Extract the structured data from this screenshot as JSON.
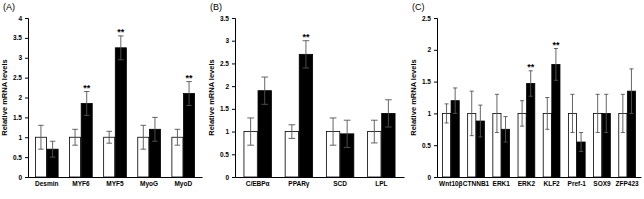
{
  "chart_data": [
    {
      "type": "bar",
      "title": "(A)",
      "y_label": "Relative mRNA levels",
      "categories": [
        "Desmin",
        "MYF6",
        "MYF5",
        "MyoG",
        "MyoD"
      ],
      "series": [
        {
          "color": "#ffffff",
          "values": [
            1,
            1,
            1,
            1,
            1
          ],
          "errors": [
            0.3,
            0.2,
            0.15,
            0.3,
            0.2
          ]
        },
        {
          "color": "#000000",
          "values": [
            0.7,
            1.85,
            3.25,
            1.2,
            2.1
          ],
          "errors": [
            0.2,
            0.3,
            0.3,
            0.3,
            0.3
          ]
        }
      ],
      "ylim": [
        0,
        4
      ],
      "yticks": [
        0,
        0.5,
        1,
        1.5,
        2,
        2.5,
        3,
        3.5,
        4
      ],
      "annotations": [
        {
          "x": "MYF6",
          "text": "**"
        },
        {
          "x": "MYF5",
          "text": "**"
        },
        {
          "x": "MyoD",
          "text": "**"
        }
      ]
    },
    {
      "type": "bar",
      "title": "(B)",
      "y_label": "Relative mRNA levels",
      "categories": [
        "C/EBPα",
        "PPARγ",
        "SCD",
        "LPL"
      ],
      "series": [
        {
          "color": "#ffffff",
          "values": [
            1,
            1,
            1,
            1
          ],
          "errors": [
            0.3,
            0.15,
            0.3,
            0.25
          ]
        },
        {
          "color": "#000000",
          "values": [
            1.9,
            2.7,
            0.95,
            1.4
          ],
          "errors": [
            0.3,
            0.3,
            0.3,
            0.3
          ]
        }
      ],
      "ylim": [
        0,
        3.5
      ],
      "yticks": [
        0,
        0.5,
        1,
        1.5,
        2,
        2.5,
        3,
        3.5
      ],
      "annotations": [
        {
          "x": "PPARγ",
          "text": "**"
        }
      ]
    },
    {
      "type": "bar",
      "title": "(C)",
      "y_label": "Relative mRNA levels",
      "categories": [
        "Wnt10β",
        "CTNNB1",
        "ERK1",
        "ERK2",
        "KLF2",
        "Pref-1",
        "SOX9",
        "ZFP423"
      ],
      "series": [
        {
          "color": "#ffffff",
          "values": [
            1,
            1,
            1,
            1,
            1,
            1,
            1,
            1
          ],
          "errors": [
            0.15,
            0.35,
            0.3,
            0.2,
            0.25,
            0.3,
            0.3,
            0.3
          ]
        },
        {
          "color": "#000000",
          "values": [
            1.2,
            0.88,
            0.75,
            1.47,
            1.77,
            0.55,
            1.0,
            1.35
          ],
          "errors": [
            0.2,
            0.25,
            0.2,
            0.2,
            0.25,
            0.15,
            0.3,
            0.35
          ]
        }
      ],
      "ylim": [
        0,
        2.5
      ],
      "yticks": [
        0,
        0.5,
        1,
        1.5,
        2,
        2.5
      ],
      "annotations": [
        {
          "x": "ERK2",
          "text": "**"
        },
        {
          "x": "KLF2",
          "text": "**"
        }
      ]
    }
  ]
}
